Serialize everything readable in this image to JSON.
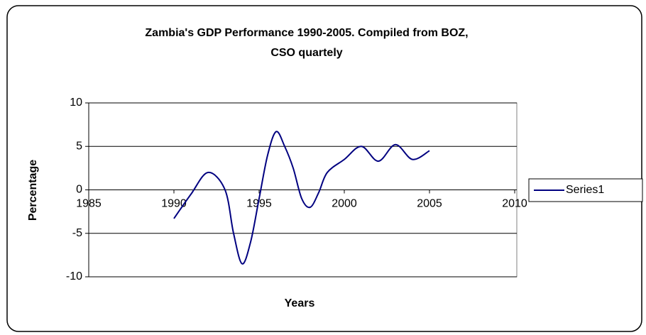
{
  "chart_data": {
    "type": "line",
    "title": [
      "Zambia's GDP Performance 1990-2005. Compiled from BOZ,",
      "CSO quartely"
    ],
    "xlabel": "Years",
    "ylabel": "Percentage",
    "x": [
      1990,
      1991,
      1992,
      1993,
      1993.5,
      1994,
      1994.5,
      1995,
      1995.5,
      1996,
      1996.5,
      1997,
      1997.5,
      1998,
      1998.5,
      1999,
      2000,
      2001,
      2002,
      2003,
      2004,
      2005
    ],
    "series": [
      {
        "name": "Series1",
        "color": "#000080",
        "values": [
          -3.3,
          -0.5,
          2.0,
          0,
          -5,
          -8.5,
          -6,
          -1,
          4,
          6.7,
          5,
          2.5,
          -1,
          -2,
          -0.3,
          2,
          3.5,
          5,
          3.3,
          5.2,
          3.5,
          4.5
        ]
      }
    ],
    "xlim": [
      1985,
      2010
    ],
    "xticks": [
      1985,
      1990,
      1995,
      2000,
      2005,
      2010
    ],
    "ylim": [
      -10,
      10
    ],
    "yticks": [
      -10,
      -5,
      0,
      5,
      10
    ],
    "grid": true,
    "legend": "right"
  }
}
